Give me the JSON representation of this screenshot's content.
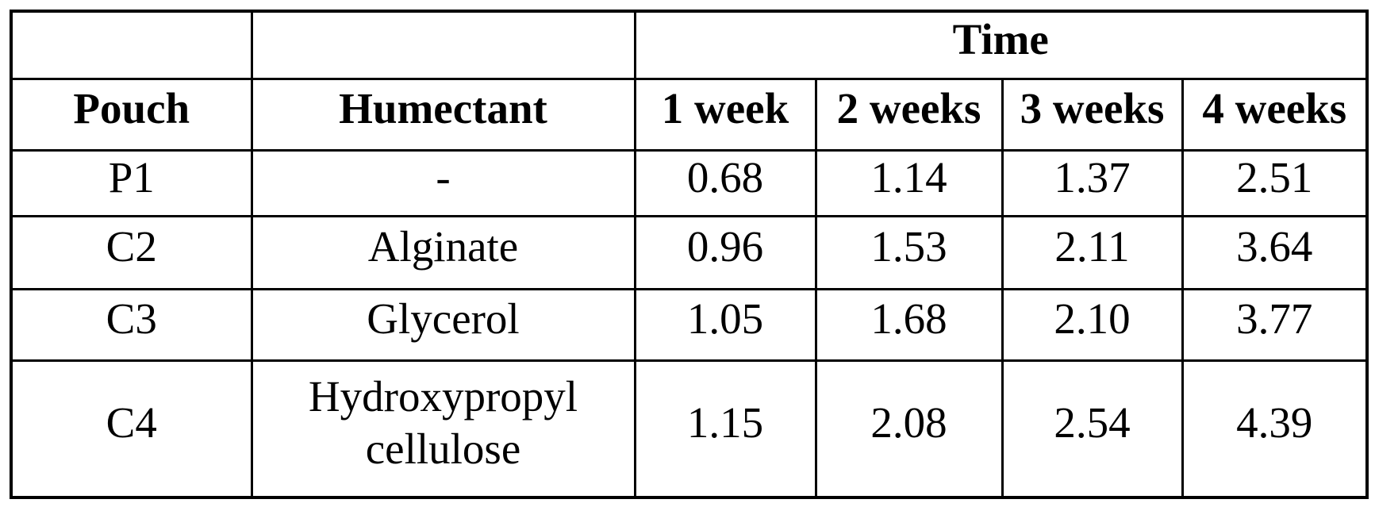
{
  "table": {
    "time_header": "Time",
    "columns": [
      "Pouch",
      "Humectant",
      "1 week",
      "2 weeks",
      "3 weeks",
      "4 weeks"
    ],
    "rows": [
      {
        "pouch": "P1",
        "humectant": "-",
        "values": [
          "0.68",
          "1.14",
          "1.37",
          "2.51"
        ]
      },
      {
        "pouch": "C2",
        "humectant": "Alginate",
        "values": [
          "0.96",
          "1.53",
          "2.11",
          "3.64"
        ]
      },
      {
        "pouch": "C3",
        "humectant": "Glycerol",
        "values": [
          "1.05",
          "1.68",
          "2.10",
          "3.77"
        ]
      },
      {
        "pouch": "C4",
        "humectant": "Hydroxypropyl cellulose",
        "values": [
          "1.15",
          "2.08",
          "2.54",
          "4.39"
        ]
      }
    ]
  },
  "chart_data": {
    "type": "table",
    "title": "",
    "group_header": {
      "label": "Time",
      "spans_columns": [
        "1 week",
        "2 weeks",
        "3 weeks",
        "4 weeks"
      ]
    },
    "columns": [
      "Pouch",
      "Humectant",
      "1 week",
      "2 weeks",
      "3 weeks",
      "4 weeks"
    ],
    "rows": [
      [
        "P1",
        "-",
        0.68,
        1.14,
        1.37,
        2.51
      ],
      [
        "C2",
        "Alginate",
        0.96,
        1.53,
        2.11,
        3.64
      ],
      [
        "C3",
        "Glycerol",
        1.05,
        1.68,
        2.1,
        3.77
      ],
      [
        "C4",
        "Hydroxypropyl cellulose",
        1.15,
        2.08,
        2.54,
        4.39
      ]
    ],
    "series": [
      {
        "name": "P1 (-)",
        "values": [
          0.68,
          1.14,
          1.37,
          2.51
        ]
      },
      {
        "name": "C2 (Alginate)",
        "values": [
          0.96,
          1.53,
          2.11,
          3.64
        ]
      },
      {
        "name": "C3 (Glycerol)",
        "values": [
          1.05,
          1.68,
          2.1,
          3.77
        ]
      },
      {
        "name": "C4 (Hydroxypropyl cellulose)",
        "values": [
          1.15,
          2.08,
          2.54,
          4.39
        ]
      }
    ],
    "x": [
      "1 week",
      "2 weeks",
      "3 weeks",
      "4 weeks"
    ],
    "layout": {
      "grid": "full table borders",
      "header_bold": true
    }
  },
  "colors": {
    "background": "#ffffff",
    "text": "#000000",
    "border": "#000000"
  }
}
